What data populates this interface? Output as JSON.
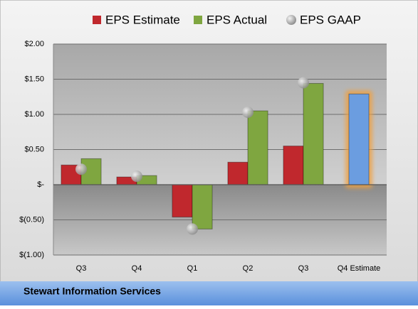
{
  "chart_data": {
    "type": "bar",
    "footer": "Stewart Information Services",
    "categories": [
      "Q3",
      "Q4",
      "Q1",
      "Q2",
      "Q3",
      "Q4 Estimate"
    ],
    "series": [
      {
        "name": "EPS Estimate",
        "color": "#c0282d",
        "colors": [
          "#c0282d",
          "#c0282d",
          "#c0282d",
          "#c0282d",
          "#c0282d",
          "#6b9de0"
        ],
        "values": [
          0.28,
          0.11,
          -0.46,
          0.32,
          0.55,
          1.29
        ]
      },
      {
        "name": "EPS Actual",
        "color": "#7fa640",
        "values": [
          0.37,
          0.13,
          -0.63,
          1.05,
          1.44,
          null
        ]
      },
      {
        "name": "EPS GAAP",
        "color": "#b0b0b0",
        "type": "scatter",
        "values": [
          0.22,
          0.12,
          -0.63,
          1.03,
          1.45,
          null
        ]
      }
    ],
    "ylim": [
      -1,
      2
    ],
    "yticks": [
      {
        "value": -1,
        "label": "$(1.00)"
      },
      {
        "value": -0.5,
        "label": "$(0.50)"
      },
      {
        "value": 0,
        "label": "$-"
      },
      {
        "value": 0.5,
        "label": "$0.50"
      },
      {
        "value": 1,
        "label": "$1.00"
      },
      {
        "value": 1.5,
        "label": "$1.50"
      },
      {
        "value": 2,
        "label": "$2.00"
      }
    ],
    "grid": true
  }
}
